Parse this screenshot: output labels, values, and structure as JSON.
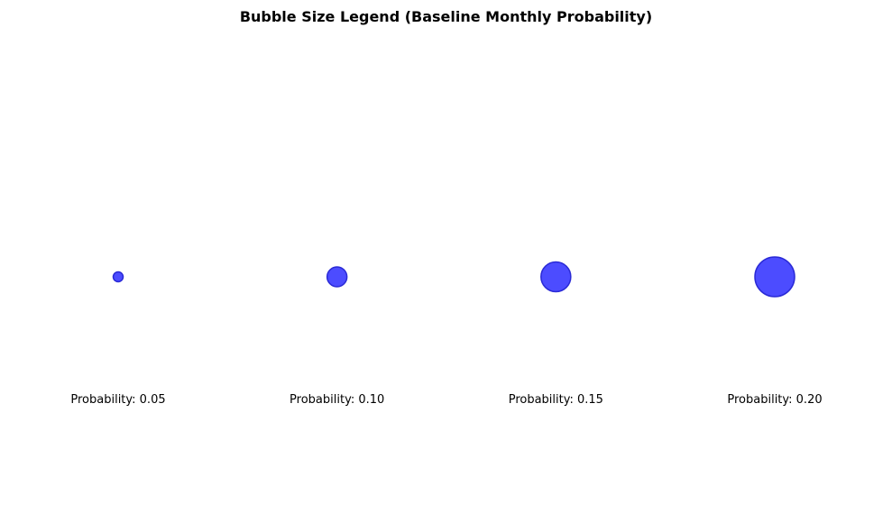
{
  "chart_data": {
    "type": "scatter",
    "title": "Bubble Size Legend (Baseline Monthly Probability)",
    "values": [
      0.05,
      0.1,
      0.15,
      0.2
    ],
    "labels": [
      "Probability: 0.05",
      "Probability: 0.10",
      "Probability: 0.15",
      "Probability: 0.20"
    ],
    "xlabel": "",
    "ylabel": "",
    "grid": false,
    "axes_visible": false,
    "colors": {
      "bubble_fill": "#0000ff",
      "bubble_fill_opacity": 0.7,
      "bubble_stroke": "#2a2ad6"
    }
  }
}
